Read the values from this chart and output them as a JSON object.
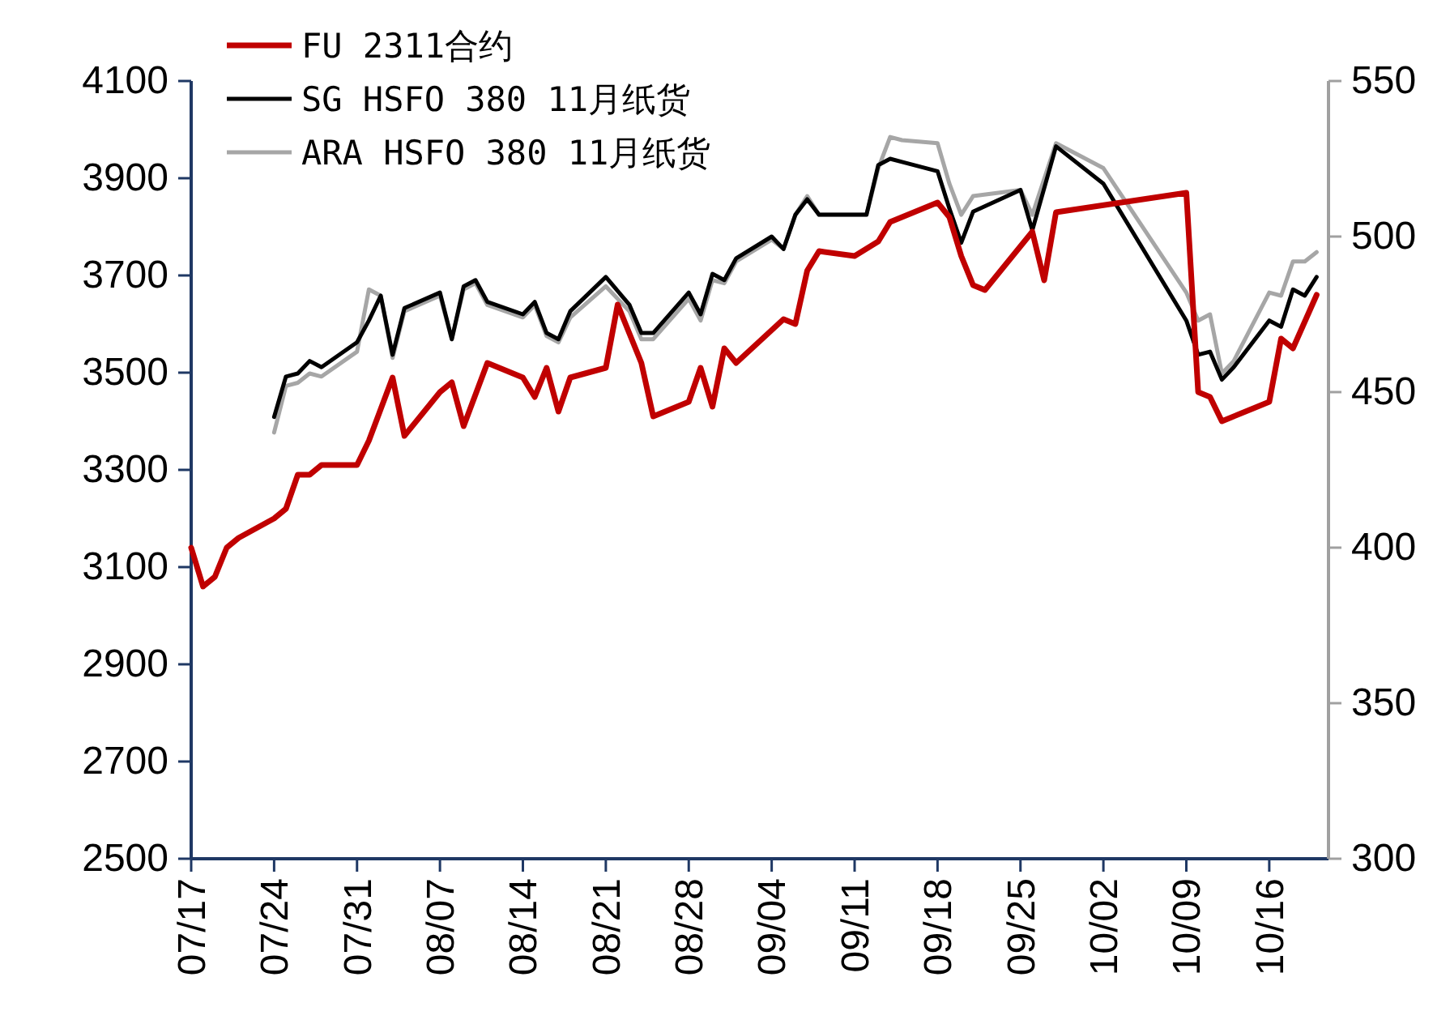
{
  "chart_data": {
    "type": "line",
    "legend": "top",
    "marker": "none",
    "line_style": "solid",
    "xlim": [
      "--07-17",
      "--10-21"
    ],
    "xticks": [
      {
        "value": "--07-17",
        "label": "07/17"
      },
      {
        "value": "--07-24",
        "label": "07/24"
      },
      {
        "value": "--07-31",
        "label": "07/31"
      },
      {
        "value": "--08-07",
        "label": "08/07"
      },
      {
        "value": "--08-14",
        "label": "08/14"
      },
      {
        "value": "--08-21",
        "label": "08/21"
      },
      {
        "value": "--08-28",
        "label": "08/28"
      },
      {
        "value": "--09-04",
        "label": "09/04"
      },
      {
        "value": "--09-11",
        "label": "09/11"
      },
      {
        "value": "--09-18",
        "label": "09/18"
      },
      {
        "value": "--09-25",
        "label": "09/25"
      },
      {
        "value": "--10-02",
        "label": "10/02"
      },
      {
        "value": "--10-09",
        "label": "10/09"
      },
      {
        "value": "--10-16",
        "label": "10/16"
      }
    ],
    "ylim": [
      2500,
      4100
    ],
    "yticks": [
      2500,
      2700,
      2900,
      3100,
      3300,
      3500,
      3700,
      3900,
      4100
    ],
    "y2lim": [
      300,
      550
    ],
    "y2ticks": [
      300,
      350,
      400,
      450,
      500,
      550
    ],
    "series": [
      {
        "name": "FU 2311合约",
        "color": "#c00000",
        "axis": "y",
        "x": [
          "--07-17",
          "--07-18",
          "--07-19",
          "--07-20",
          "--07-21",
          "--07-24",
          "--07-25",
          "--07-26",
          "--07-27",
          "--07-28",
          "--07-31",
          "--08-01",
          "--08-03",
          "--08-04",
          "--08-07",
          "--08-08",
          "--08-09",
          "--08-11",
          "--08-14",
          "--08-15",
          "--08-16",
          "--08-17",
          "--08-18",
          "--08-21",
          "--08-22",
          "--08-24",
          "--08-25",
          "--08-28",
          "--08-29",
          "--08-30",
          "--08-31",
          "--09-01",
          "--09-05",
          "--09-06",
          "--09-07",
          "--09-08",
          "--09-11",
          "--09-13",
          "--09-14",
          "--09-15",
          "--09-18",
          "--09-19",
          "--09-20",
          "--09-21",
          "--09-22",
          "--09-26",
          "--09-27",
          "--09-28",
          "--10-09",
          "--10-10",
          "--10-11",
          "--10-12",
          "--10-16",
          "--10-17",
          "--10-18",
          "--10-20"
        ],
        "values": [
          3140,
          3060,
          3080,
          3140,
          3160,
          3200,
          3220,
          3290,
          3290,
          3310,
          3310,
          3360,
          3490,
          3370,
          3460,
          3480,
          3390,
          3520,
          3490,
          3450,
          3510,
          3420,
          3490,
          3510,
          3640,
          3520,
          3410,
          3440,
          3510,
          3430,
          3550,
          3520,
          3610,
          3600,
          3710,
          3750,
          3740,
          3770,
          3810,
          3820,
          3850,
          3820,
          3740,
          3680,
          3670,
          3790,
          3690,
          3830,
          3870,
          3460,
          3450,
          3400,
          3440,
          3570,
          3550,
          3660
        ]
      },
      {
        "name": "SG HSFO 380 11月纸货",
        "color": "#000000",
        "axis": "y2",
        "x": [
          "--07-24",
          "--07-25",
          "--07-26",
          "--07-27",
          "--07-28",
          "--07-31",
          "--08-01",
          "--08-02",
          "--08-03",
          "--08-04",
          "--08-07",
          "--08-08",
          "--08-09",
          "--08-10",
          "--08-11",
          "--08-14",
          "--08-15",
          "--08-16",
          "--08-17",
          "--08-18",
          "--08-21",
          "--08-23",
          "--08-24",
          "--08-25",
          "--08-28",
          "--08-29",
          "--08-30",
          "--08-31",
          "--09-01",
          "--09-04",
          "--09-05",
          "--09-06",
          "--09-07",
          "--09-08",
          "--09-12",
          "--09-13",
          "--09-14",
          "--09-15",
          "--09-18",
          "--09-19",
          "--09-20",
          "--09-21",
          "--09-25",
          "--09-26",
          "--09-28",
          "--10-02",
          "--10-09",
          "--10-10",
          "--10-11",
          "--10-12",
          "--10-13",
          "--10-16",
          "--10-17",
          "--10-18",
          "--10-19",
          "--10-20"
        ],
        "values": [
          442,
          455,
          456,
          460,
          458,
          466,
          473,
          481,
          462,
          477,
          482,
          467,
          484,
          486,
          479,
          475,
          479,
          469,
          467,
          476,
          487,
          478,
          469,
          469,
          482,
          475,
          488,
          486,
          493,
          500,
          496,
          507,
          512,
          507,
          507,
          523,
          525,
          524,
          521,
          509,
          498,
          508,
          515,
          502,
          529,
          517,
          473,
          462,
          463,
          454,
          458,
          473,
          471,
          483,
          481,
          487
        ]
      },
      {
        "name": "ARA HSFO 380 11月纸货",
        "color": "#a6a6a6",
        "axis": "y2",
        "x": [
          "--07-24",
          "--07-25",
          "--07-26",
          "--07-27",
          "--07-28",
          "--07-31",
          "--08-01",
          "--08-02",
          "--08-03",
          "--08-04",
          "--08-07",
          "--08-08",
          "--08-09",
          "--08-10",
          "--08-11",
          "--08-14",
          "--08-15",
          "--08-16",
          "--08-17",
          "--08-18",
          "--08-21",
          "--08-23",
          "--08-24",
          "--08-25",
          "--08-28",
          "--08-29",
          "--08-30",
          "--08-31",
          "--09-01",
          "--09-04",
          "--09-05",
          "--09-06",
          "--09-07",
          "--09-08",
          "--09-12",
          "--09-13",
          "--09-14",
          "--09-15",
          "--09-18",
          "--09-19",
          "--09-20",
          "--09-21",
          "--09-25",
          "--09-26",
          "--09-28",
          "--10-02",
          "--10-09",
          "--10-10",
          "--10-11",
          "--10-12",
          "--10-13",
          "--10-16",
          "--10-17",
          "--10-18",
          "--10-19",
          "--10-20"
        ],
        "values": [
          437,
          452,
          453,
          456,
          455,
          463,
          483,
          481,
          461,
          476,
          481,
          467,
          483,
          485,
          478,
          474,
          478,
          468,
          466,
          474,
          484,
          476,
          467,
          467,
          480,
          473,
          486,
          485,
          492,
          499,
          496,
          507,
          513,
          507,
          507,
          522,
          532,
          531,
          530,
          517,
          507,
          513,
          515,
          507,
          530,
          522,
          482,
          473,
          475,
          456,
          460,
          482,
          481,
          492,
          492,
          495
        ]
      }
    ]
  }
}
